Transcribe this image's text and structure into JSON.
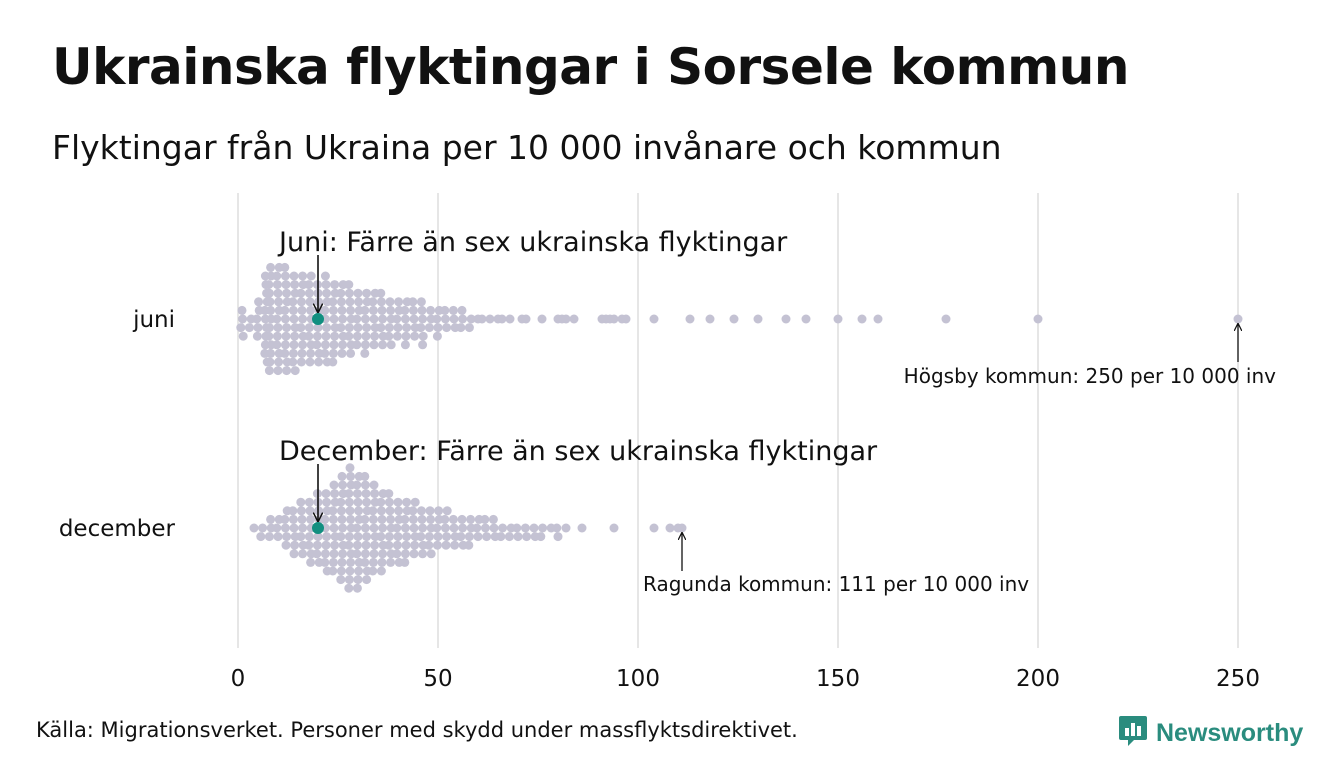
{
  "header": {
    "title": "Ukrainska flyktingar i Sorsele kommun",
    "subtitle": "Flyktingar från Ukraina per 10 000 invånare och kommun"
  },
  "footer": {
    "source": "Källa: Migrationsverket. Personer med skydd under massflyktsdirektivet.",
    "brand": "Newsworthy"
  },
  "colors": {
    "dot": "#c4c2d3",
    "highlight": "#118f80",
    "grid": "#d6d6d6",
    "brand": "#2a8c7e"
  },
  "chart_data": {
    "type": "beeswarm",
    "title": "Ukrainska flyktingar i Sorsele kommun",
    "subtitle": "Flyktingar från Ukraina per 10 000 invånare och kommun",
    "xlabel": "",
    "xlim": [
      0,
      250
    ],
    "xticks": [
      0,
      50,
      100,
      150,
      200,
      250
    ],
    "grid": true,
    "categories": [
      "juni",
      "december"
    ],
    "series": [
      {
        "name": "juni",
        "highlight": {
          "label": "Sorsele",
          "value": 20
        },
        "highlight_annotation": "Juni: Färre än sex ukrainska flyktingar",
        "max_annotation": "Högsby kommun: 250 per 10 000 inv",
        "max_value": 250,
        "outliers": [
          60,
          61,
          63,
          65,
          66,
          68,
          71,
          72,
          76,
          80,
          81,
          82,
          84,
          91,
          92,
          93,
          94,
          96,
          97,
          104,
          113,
          118,
          124,
          130,
          137,
          142,
          150,
          156,
          160,
          177,
          200,
          250
        ],
        "bins": [
          [
            1,
            4
          ],
          [
            3,
            2
          ],
          [
            5,
            5
          ],
          [
            7,
            11
          ],
          [
            8,
            13
          ],
          [
            10,
            13
          ],
          [
            12,
            13
          ],
          [
            14,
            12
          ],
          [
            16,
            11
          ],
          [
            18,
            11
          ],
          [
            20,
            10
          ],
          [
            22,
            11
          ],
          [
            24,
            10
          ],
          [
            26,
            9
          ],
          [
            28,
            9
          ],
          [
            30,
            7
          ],
          [
            32,
            8
          ],
          [
            34,
            7
          ],
          [
            36,
            7
          ],
          [
            38,
            6
          ],
          [
            40,
            5
          ],
          [
            42,
            6
          ],
          [
            44,
            5
          ],
          [
            46,
            6
          ],
          [
            48,
            3
          ],
          [
            50,
            4
          ],
          [
            52,
            3
          ],
          [
            54,
            3
          ],
          [
            56,
            3
          ],
          [
            58,
            2
          ]
        ]
      },
      {
        "name": "december",
        "highlight": {
          "label": "Sorsele",
          "value": 20
        },
        "highlight_annotation": "December: Färre än sex ukrainska flyktingar",
        "max_annotation": "Ragunda kommun: 111 per 10 000 inv",
        "max_value": 111,
        "outliers": [
          82,
          86,
          94,
          104,
          108,
          110,
          111
        ],
        "bins": [
          [
            4,
            1
          ],
          [
            6,
            2
          ],
          [
            8,
            3
          ],
          [
            10,
            3
          ],
          [
            12,
            5
          ],
          [
            14,
            6
          ],
          [
            16,
            7
          ],
          [
            18,
            8
          ],
          [
            20,
            9
          ],
          [
            22,
            10
          ],
          [
            24,
            11
          ],
          [
            26,
            13
          ],
          [
            28,
            15
          ],
          [
            30,
            14
          ],
          [
            32,
            13
          ],
          [
            34,
            11
          ],
          [
            36,
            10
          ],
          [
            38,
            9
          ],
          [
            40,
            8
          ],
          [
            42,
            8
          ],
          [
            44,
            7
          ],
          [
            46,
            6
          ],
          [
            48,
            6
          ],
          [
            50,
            5
          ],
          [
            52,
            5
          ],
          [
            54,
            4
          ],
          [
            56,
            4
          ],
          [
            58,
            4
          ],
          [
            60,
            3
          ],
          [
            62,
            3
          ],
          [
            64,
            3
          ],
          [
            66,
            2
          ],
          [
            68,
            2
          ],
          [
            70,
            2
          ],
          [
            72,
            2
          ],
          [
            74,
            2
          ],
          [
            76,
            2
          ],
          [
            78,
            1
          ],
          [
            80,
            2
          ]
        ]
      }
    ]
  }
}
